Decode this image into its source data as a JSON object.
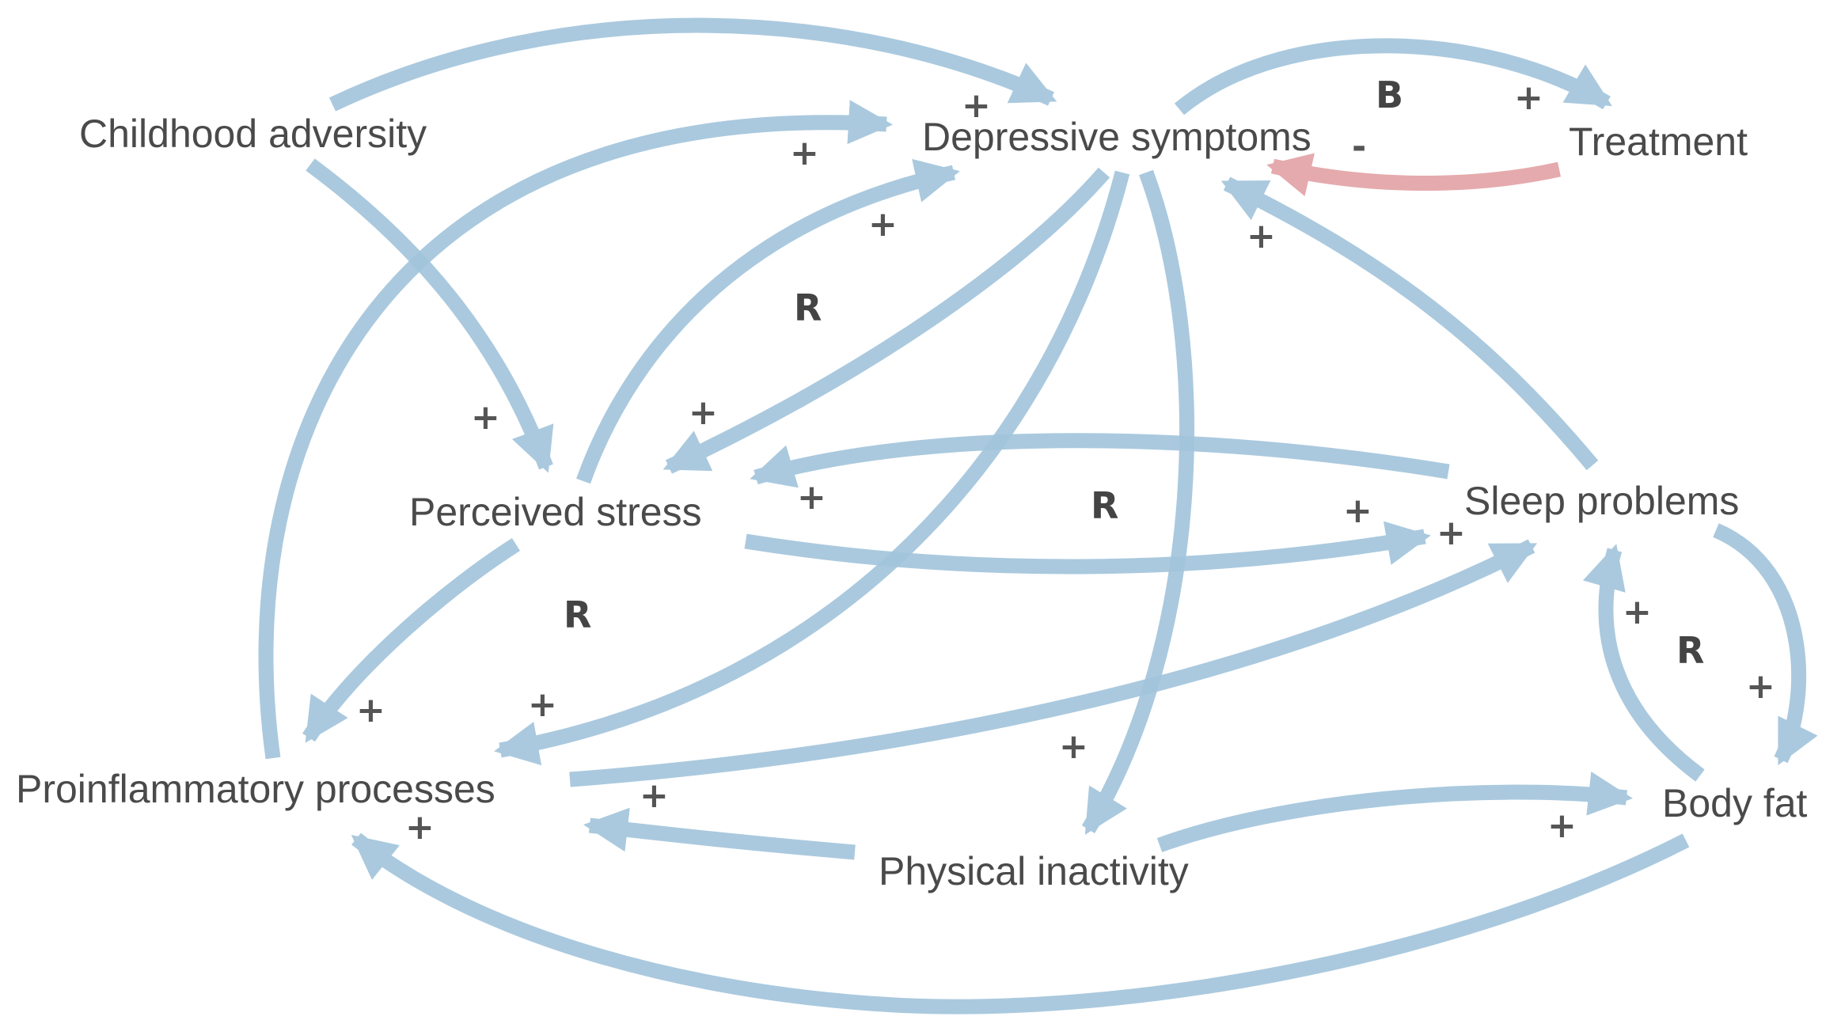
{
  "colors": {
    "positive_edge": "#a3c5dc",
    "negative_edge": "#e3a3a7",
    "label": "#4a4a4a"
  },
  "nodes": {
    "childhood_adversity": "Childhood adversity",
    "depressive_symptoms": "Depressive symptoms",
    "treatment": "Treatment",
    "perceived_stress": "Perceived stress",
    "sleep_problems": "Sleep problems",
    "proinflammatory_processes": "Proinflammatory processes",
    "physical_inactivity": "Physical inactivity",
    "body_fat": "Body fat"
  },
  "signs": {
    "plus": "+",
    "minus": "-"
  },
  "loops": {
    "b": "B",
    "r": "R"
  },
  "edges": [
    {
      "from": "Childhood adversity",
      "to": "Depressive symptoms",
      "polarity": "+"
    },
    {
      "from": "Childhood adversity",
      "to": "Perceived stress",
      "polarity": "+"
    },
    {
      "from": "Depressive symptoms",
      "to": "Treatment",
      "polarity": "+"
    },
    {
      "from": "Treatment",
      "to": "Depressive symptoms",
      "polarity": "-"
    },
    {
      "from": "Proinflammatory processes",
      "to": "Depressive symptoms",
      "polarity": "+"
    },
    {
      "from": "Perceived stress",
      "to": "Depressive symptoms",
      "polarity": "+"
    },
    {
      "from": "Depressive symptoms",
      "to": "Perceived stress",
      "polarity": "+"
    },
    {
      "from": "Sleep problems",
      "to": "Depressive symptoms",
      "polarity": "+"
    },
    {
      "from": "Depressive symptoms",
      "to": "Proinflammatory processes",
      "polarity": "+"
    },
    {
      "from": "Depressive symptoms",
      "to": "Physical inactivity",
      "polarity": "+"
    },
    {
      "from": "Sleep problems",
      "to": "Perceived stress",
      "polarity": "+"
    },
    {
      "from": "Perceived stress",
      "to": "Sleep problems",
      "polarity": "+"
    },
    {
      "from": "Proinflammatory processes",
      "to": "Sleep problems",
      "polarity": "+"
    },
    {
      "from": "Perceived stress",
      "to": "Proinflammatory processes",
      "polarity": "+"
    },
    {
      "from": "Physical inactivity",
      "to": "Proinflammatory processes",
      "polarity": "+"
    },
    {
      "from": "Physical inactivity",
      "to": "Body fat",
      "polarity": "+"
    },
    {
      "from": "Body fat",
      "to": "Proinflammatory processes",
      "polarity": "+"
    },
    {
      "from": "Sleep problems",
      "to": "Body fat",
      "polarity": "+"
    },
    {
      "from": "Body fat",
      "to": "Sleep problems",
      "polarity": "+"
    }
  ]
}
